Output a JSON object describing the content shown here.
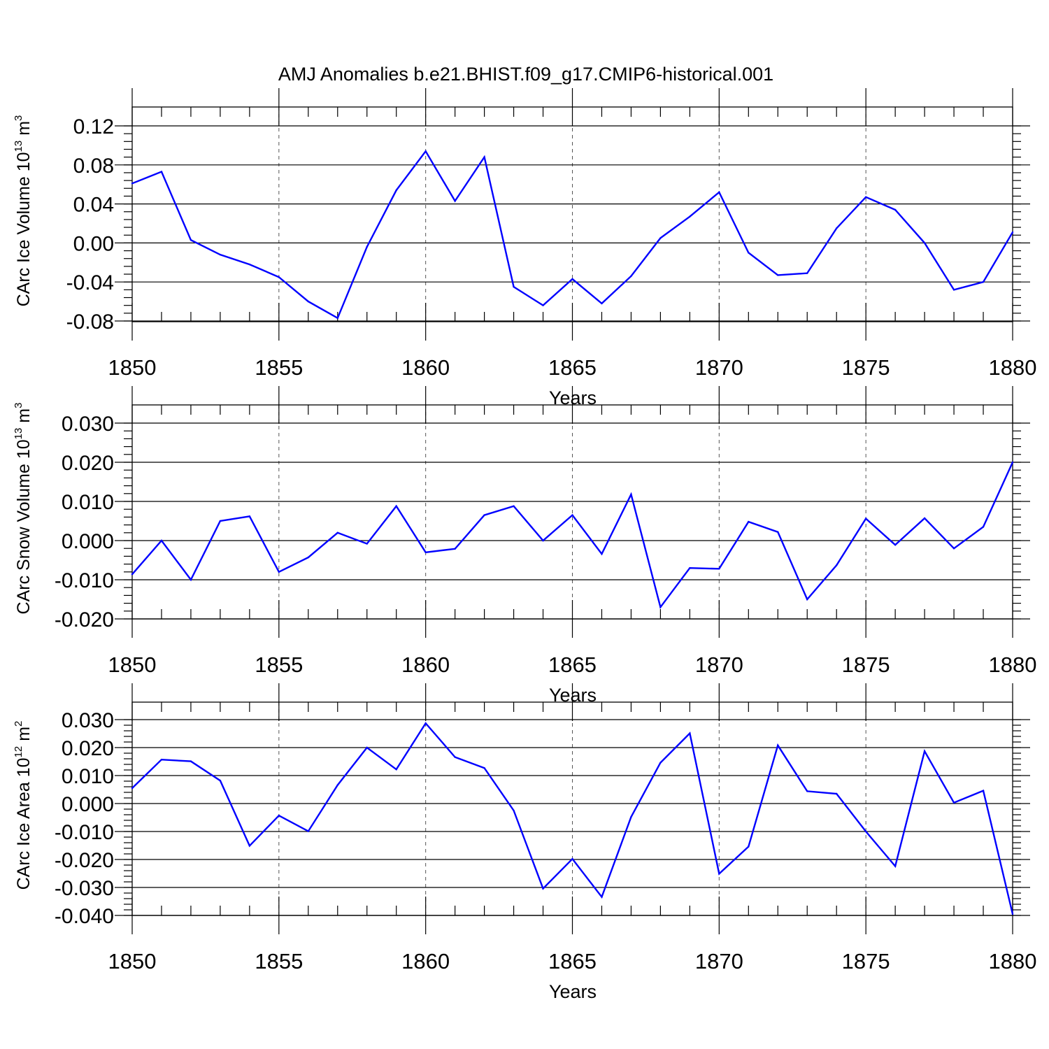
{
  "title": "AMJ Anomalies b.e21.BHIST.f09_g17.CMIP6-historical.001",
  "colors": {
    "series": "#0000ff",
    "frame": "#000000",
    "grid": "#555555"
  },
  "chart_data": [
    {
      "type": "line",
      "xlabel": "Years",
      "ylabel": {
        "text": "CArc Ice Volume 10",
        "sup1": "13",
        "mid": " m",
        "sup2": "3"
      },
      "xlim": [
        1850,
        1880
      ],
      "ylim": [
        -0.09,
        0.12
      ],
      "xticks": [
        "1850",
        "1855",
        "1860",
        "1865",
        "1870",
        "1875",
        "1880"
      ],
      "yticks": [
        "0.12",
        "0.08",
        "0.04",
        "0.00",
        "-0.04",
        "-0.08"
      ],
      "grid": "vertical dashed at labeled years",
      "x": [
        1850,
        1851,
        1852,
        1853,
        1854,
        1855,
        1856,
        1857,
        1858,
        1859,
        1860,
        1861,
        1862,
        1863,
        1864,
        1865,
        1866,
        1867,
        1868,
        1869,
        1870,
        1871,
        1872,
        1873,
        1874,
        1875,
        1876,
        1877,
        1878,
        1879,
        1880
      ],
      "series": [
        {
          "values": [
            0.061,
            0.073,
            0.003,
            -0.012,
            -0.022,
            -0.035,
            -0.06,
            -0.077,
            -0.004,
            0.054,
            0.094,
            0.043,
            0.088,
            -0.045,
            -0.064,
            -0.037,
            -0.062,
            -0.034,
            0.005,
            0.027,
            0.052,
            -0.01,
            -0.033,
            -0.031,
            0.015,
            0.047,
            0.034,
            0.0,
            -0.048,
            -0.04,
            0.011
          ]
        }
      ]
    },
    {
      "type": "line",
      "xlabel": "Years",
      "ylabel": {
        "text": "CArc Snow Volume 10",
        "sup1": "13",
        "mid": " m",
        "sup2": "3"
      },
      "xlim": [
        1850,
        1880
      ],
      "ylim": [
        -0.02,
        0.03
      ],
      "xticks": [
        "1850",
        "1855",
        "1860",
        "1865",
        "1870",
        "1875",
        "1880"
      ],
      "yticks": [
        "0.030",
        "0.020",
        "0.010",
        "0.000",
        "-0.010",
        "-0.020"
      ],
      "grid": "vertical dashed at labeled years",
      "x": [
        1850,
        1851,
        1852,
        1853,
        1854,
        1855,
        1856,
        1857,
        1858,
        1859,
        1860,
        1861,
        1862,
        1863,
        1864,
        1865,
        1866,
        1867,
        1868,
        1869,
        1870,
        1871,
        1872,
        1873,
        1874,
        1875,
        1876,
        1877,
        1878,
        1879,
        1880
      ],
      "series": [
        {
          "values": [
            -0.0086,
            0.0,
            -0.01,
            0.005,
            0.0062,
            -0.008,
            -0.0043,
            0.002,
            -0.0008,
            0.0088,
            -0.003,
            -0.0021,
            0.0065,
            0.0088,
            0.0,
            0.0065,
            -0.0034,
            0.0118,
            -0.017,
            -0.007,
            -0.0072,
            0.0048,
            0.0022,
            -0.015,
            -0.0063,
            0.0056,
            -0.0011,
            0.0057,
            -0.002,
            0.0035,
            0.02
          ]
        }
      ]
    },
    {
      "type": "line",
      "xlabel": "Years",
      "ylabel": {
        "text": "CArc Ice Area 10",
        "sup1": "12",
        "mid": " m",
        "sup2": "2"
      },
      "xlim": [
        1850,
        1880
      ],
      "ylim": [
        -0.04,
        0.03
      ],
      "xticks": [
        "1850",
        "1855",
        "1860",
        "1865",
        "1870",
        "1875",
        "1880"
      ],
      "yticks": [
        "0.030",
        "0.020",
        "0.010",
        "0.000",
        "-0.010",
        "-0.020",
        "-0.030",
        "-0.040"
      ],
      "grid": "vertical dashed at labeled years",
      "x": [
        1850,
        1851,
        1852,
        1853,
        1854,
        1855,
        1856,
        1857,
        1858,
        1859,
        1860,
        1861,
        1862,
        1863,
        1864,
        1865,
        1866,
        1867,
        1868,
        1869,
        1870,
        1871,
        1872,
        1873,
        1874,
        1875,
        1876,
        1877,
        1878,
        1879,
        1880
      ],
      "series": [
        {
          "values": [
            0.0055,
            0.0157,
            0.0151,
            0.0082,
            -0.0151,
            -0.0043,
            -0.0099,
            0.0066,
            0.02,
            0.0122,
            0.0287,
            0.0166,
            0.0127,
            -0.0025,
            -0.0304,
            -0.0198,
            -0.0334,
            -0.0048,
            0.0146,
            0.0251,
            -0.0251,
            -0.0154,
            0.0208,
            0.0044,
            0.0035,
            -0.01,
            -0.0224,
            0.0187,
            0.0003,
            0.0046,
            -0.0395
          ]
        }
      ]
    }
  ]
}
